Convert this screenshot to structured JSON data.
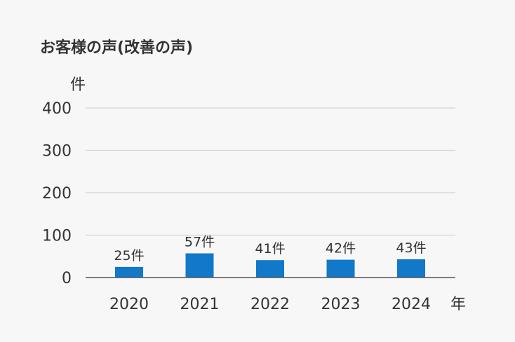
{
  "chart_data": {
    "type": "bar",
    "title": "お客様の声(改善の声)",
    "xlabel": "年",
    "ylabel": "件",
    "categories": [
      "2020",
      "2021",
      "2022",
      "2023",
      "2024"
    ],
    "values": [
      25,
      57,
      41,
      42,
      43
    ],
    "data_labels": [
      "25件",
      "57件",
      "41件",
      "42件",
      "43件"
    ],
    "yticks": [
      0,
      100,
      200,
      300,
      400
    ],
    "ylim": [
      0,
      400
    ],
    "grid": true,
    "bar_color": "#1278c9",
    "legend": "none"
  }
}
